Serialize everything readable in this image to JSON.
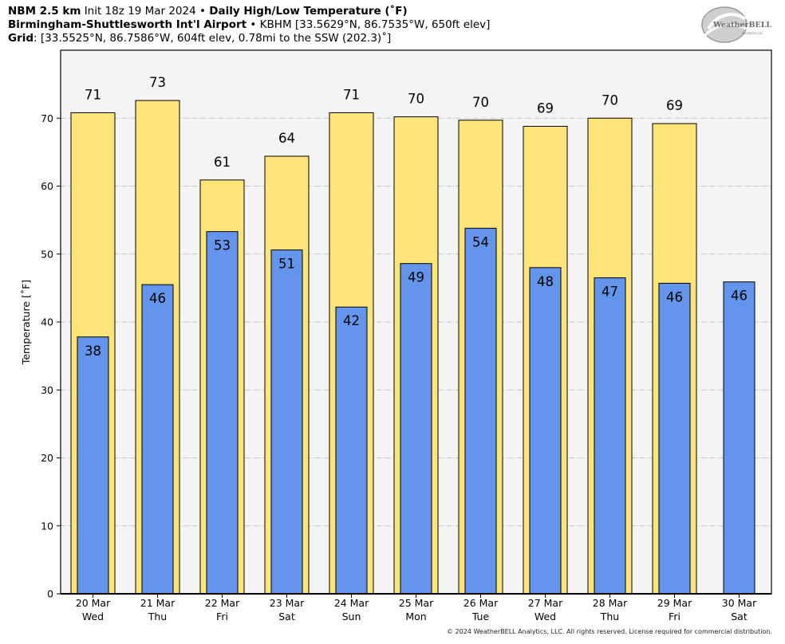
{
  "header": {
    "line1_model": "NBM 2.5 km",
    "line1_init": "Init 18z 19 Mar 2024",
    "bullet": "•",
    "line1_product": "Daily High/Low Temperature (˚F)",
    "line2_station": "Birmingham-Shuttlesworth Int'l Airport",
    "line2_details": "KBHM [33.5629°N, 86.7535°W, 650ft elev]",
    "line3_label": "Grid",
    "line3_details": ": [33.5525°N, 86.7586°W, 604ft elev, 0.78mi to the SSW (202.3)˚]"
  },
  "logo": {
    "text": "WeatherBELL",
    "subtext": "Analytics LLC"
  },
  "copyright": "© 2024 WeatherBELL Analytics, LLC. All rights reserved. License required for commercial distribution.",
  "chart_data": {
    "type": "bar",
    "ylabel": "Temperature [˚F]",
    "ylim": [
      0,
      80
    ],
    "yticks": [
      0,
      10,
      20,
      30,
      40,
      50,
      60,
      70
    ],
    "grid": true,
    "categories": [
      [
        "20 Mar",
        "Wed"
      ],
      [
        "21 Mar",
        "Thu"
      ],
      [
        "22 Mar",
        "Fri"
      ],
      [
        "23 Mar",
        "Sat"
      ],
      [
        "24 Mar",
        "Sun"
      ],
      [
        "25 Mar",
        "Mon"
      ],
      [
        "26 Mar",
        "Tue"
      ],
      [
        "27 Mar",
        "Wed"
      ],
      [
        "28 Mar",
        "Thu"
      ],
      [
        "29 Mar",
        "Fri"
      ],
      [
        "30 Mar",
        "Sat"
      ]
    ],
    "series": [
      {
        "key": "high",
        "color": "#ffe47a",
        "values": [
          70.8,
          72.6,
          60.9,
          64.4,
          70.8,
          70.2,
          69.7,
          68.8,
          70.0,
          69.2,
          null
        ],
        "labels": [
          "71",
          "73",
          "61",
          "64",
          "71",
          "70",
          "70",
          "69",
          "70",
          "69",
          ""
        ]
      },
      {
        "key": "low",
        "color": "#6495ed",
        "values": [
          37.8,
          45.5,
          53.3,
          50.6,
          42.2,
          48.6,
          53.8,
          48.0,
          46.5,
          45.7,
          45.9
        ],
        "labels": [
          "38",
          "46",
          "53",
          "51",
          "42",
          "49",
          "54",
          "48",
          "47",
          "46",
          "46"
        ]
      }
    ],
    "colors": {
      "plot_bg": "#f5f4f5",
      "grid": "#b0b0b0",
      "edge": "#000000"
    }
  }
}
